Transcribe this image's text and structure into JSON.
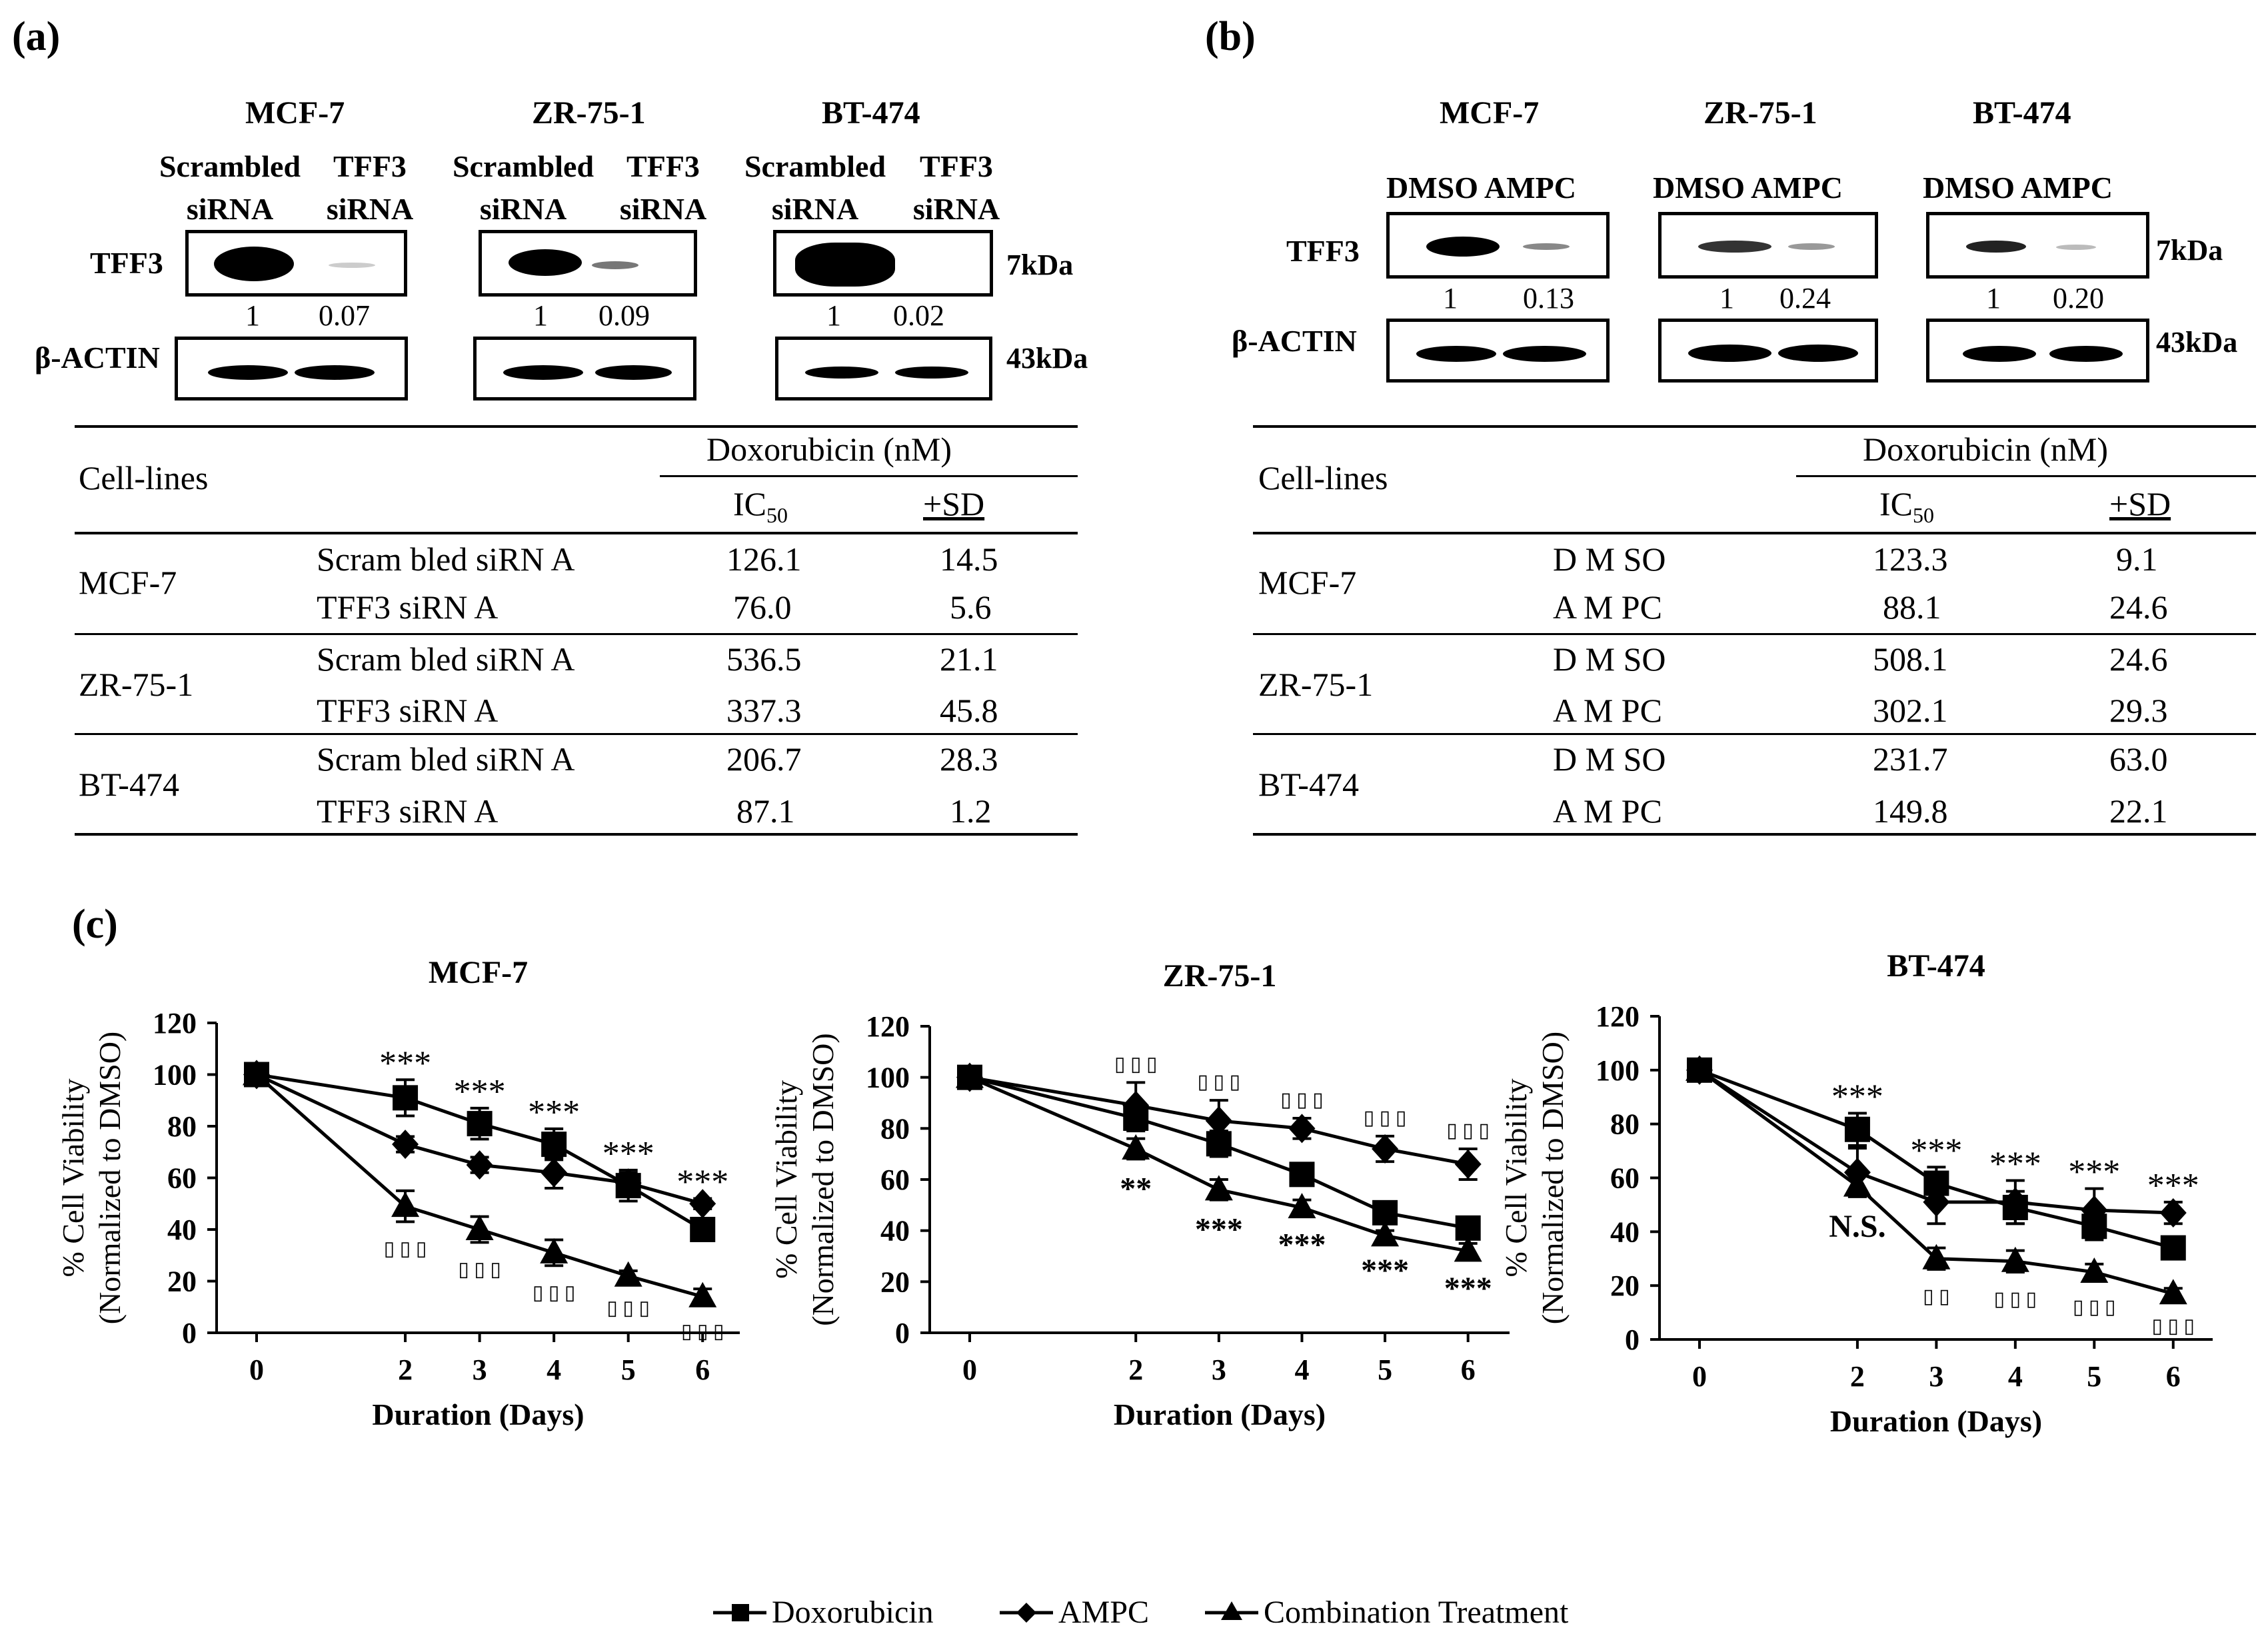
{
  "panel_a": {
    "label": "(a)",
    "cell_lines": [
      {
        "name": "MCF-7",
        "lane1": [
          "Scrambled",
          "siRNA"
        ],
        "lane2": [
          "TFF3",
          "siRNA"
        ],
        "quant": [
          "1",
          "0.07"
        ]
      },
      {
        "name": "ZR-75-1",
        "lane1": [
          "Scrambled",
          "siRNA"
        ],
        "lane2": [
          "TFF3",
          "siRNA"
        ],
        "quant": [
          "1",
          "0.09"
        ]
      },
      {
        "name": "BT-474",
        "lane1": [
          "Scrambled",
          "siRNA"
        ],
        "lane2": [
          "TFF3",
          "siRNA"
        ],
        "quant": [
          "1",
          "0.02"
        ]
      }
    ],
    "blot_labels": {
      "tff3": "TFF3",
      "actin": "β-ACTIN",
      "kda_tff3": "7kDa",
      "kda_actin": "43kDa"
    },
    "table": {
      "col_title": "Cell-lines",
      "group_header": "Doxorubicin (nM)",
      "ic": "IC",
      "ic_sub": "50",
      "sd": "+SD",
      "rows": [
        {
          "line": "MCF-7",
          "items": [
            {
              "cond": "Scram bled siRN A",
              "ic50": "126.1",
              "sd": "14.5"
            },
            {
              "cond": "TFF3 siRN A",
              "ic50": "76.0",
              "sd": "5.6"
            }
          ]
        },
        {
          "line": "ZR-75-1",
          "items": [
            {
              "cond": "Scram bled siRN A",
              "ic50": "536.5",
              "sd": "21.1"
            },
            {
              "cond": "TFF3 siRN A",
              "ic50": "337.3",
              "sd": "45.8"
            }
          ]
        },
        {
          "line": "BT-474",
          "items": [
            {
              "cond": "Scram bled siRN A",
              "ic50": "206.7",
              "sd": "28.3"
            },
            {
              "cond": "TFF3 siRN A",
              "ic50": "87.1",
              "sd": "1.2"
            }
          ]
        }
      ]
    }
  },
  "panel_b": {
    "label": "(b)",
    "cell_lines": [
      {
        "name": "MCF-7",
        "lanes": "DMSO AMPC",
        "quant": [
          "1",
          "0.13"
        ]
      },
      {
        "name": "ZR-75-1",
        "lanes": "DMSO AMPC",
        "quant": [
          "1",
          "0.24"
        ]
      },
      {
        "name": "BT-474",
        "lanes": "DMSO AMPC",
        "quant": [
          "1",
          "0.20"
        ]
      }
    ],
    "blot_labels": {
      "tff3": "TFF3",
      "actin": "β-ACTIN",
      "kda_tff3": "7kDa",
      "kda_actin": "43kDa"
    },
    "table": {
      "col_title": "Cell-lines",
      "group_header": "Doxorubicin (nM)",
      "ic": "IC",
      "ic_sub": "50",
      "sd": "+SD",
      "rows": [
        {
          "line": "MCF-7",
          "items": [
            {
              "cond": "D M SO",
              "ic50": "123.3",
              "sd": "9.1"
            },
            {
              "cond": "A M PC",
              "ic50": "88.1",
              "sd": "24.6"
            }
          ]
        },
        {
          "line": "ZR-75-1",
          "items": [
            {
              "cond": "D M SO",
              "ic50": "508.1",
              "sd": "24.6"
            },
            {
              "cond": "A M PC",
              "ic50": "302.1",
              "sd": "29.3"
            }
          ]
        },
        {
          "line": "BT-474",
          "items": [
            {
              "cond": "D M SO",
              "ic50": "231.7",
              "sd": "63.0"
            },
            {
              "cond": "A M PC",
              "ic50": "149.8",
              "sd": "22.1"
            }
          ]
        }
      ]
    }
  },
  "panel_c": {
    "label": "(c)",
    "legend": [
      "Doxorubicin",
      "AMPC",
      "Combination Treatment"
    ]
  },
  "chart_data": [
    {
      "type": "line",
      "title": "MCF-7",
      "xlabel": "Duration (Days)",
      "ylabel": [
        "% Cell Viability",
        "(Normalized to DMSO)"
      ],
      "x": [
        0,
        2,
        3,
        4,
        5,
        6
      ],
      "ylim": [
        0,
        120
      ],
      "yticks": [
        0,
        20,
        40,
        60,
        80,
        100,
        120
      ],
      "series": [
        {
          "name": "Doxorubicin",
          "marker": "square",
          "values": [
            100,
            91,
            81,
            73,
            57,
            40
          ],
          "err": [
            2,
            7,
            6,
            6,
            6,
            2
          ]
        },
        {
          "name": "AMPC",
          "marker": "diamond",
          "values": [
            100,
            73,
            65,
            62,
            58,
            50
          ],
          "err": [
            2,
            3,
            3,
            6,
            4,
            2
          ]
        },
        {
          "name": "Combination Treatment",
          "marker": "triangle",
          "values": [
            100,
            49,
            40,
            31,
            22,
            14
          ],
          "err": [
            2,
            6,
            5,
            5,
            2,
            3
          ]
        }
      ],
      "annotations_top": [
        "***",
        "***",
        "***",
        "***",
        "***"
      ],
      "annotations_bottom": [
        "▯ ▯ ▯",
        "▯ ▯ ▯",
        "▯ ▯ ▯",
        "▯ ▯ ▯",
        "▯ ▯ ▯"
      ]
    },
    {
      "type": "line",
      "title": "ZR-75-1",
      "xlabel": "Duration (Days)",
      "ylabel": [
        "% Cell Viability",
        "(Normalized to DMSO)"
      ],
      "x": [
        0,
        2,
        3,
        4,
        5,
        6
      ],
      "ylim": [
        0,
        120
      ],
      "yticks": [
        0,
        20,
        40,
        60,
        80,
        100,
        120
      ],
      "series": [
        {
          "name": "Doxorubicin",
          "marker": "square",
          "values": [
            100,
            84,
            74,
            62,
            47,
            41
          ],
          "err": [
            2,
            5,
            5,
            4,
            4,
            3
          ]
        },
        {
          "name": "AMPC",
          "marker": "diamond",
          "values": [
            100,
            89,
            83,
            80,
            72,
            66
          ],
          "err": [
            2,
            9,
            8,
            4,
            5,
            6
          ]
        },
        {
          "name": "Combination Treatment",
          "marker": "triangle",
          "values": [
            100,
            72,
            56,
            49,
            38,
            32
          ],
          "err": [
            2,
            4,
            4,
            3,
            2,
            3
          ]
        }
      ],
      "annotations_top": [
        "▯ ▯ ▯",
        "▯ ▯ ▯",
        "▯ ▯ ▯",
        "▯ ▯ ▯",
        "▯ ▯ ▯"
      ],
      "annotations_bottom": [
        "**",
        "***",
        "***",
        "***",
        "***"
      ]
    },
    {
      "type": "line",
      "title": "BT-474",
      "xlabel": "Duration (Days)",
      "ylabel": [
        "% Cell  Viability",
        "(Normalized to DMSO)"
      ],
      "x": [
        0,
        2,
        3,
        4,
        5,
        6
      ],
      "ylim": [
        0,
        120
      ],
      "yticks": [
        0,
        20,
        40,
        60,
        80,
        100,
        120
      ],
      "series": [
        {
          "name": "Doxorubicin",
          "marker": "square",
          "values": [
            100,
            78,
            58,
            49,
            42,
            34
          ],
          "err": [
            2,
            6,
            6,
            6,
            5,
            3
          ]
        },
        {
          "name": "AMPC",
          "marker": "diamond",
          "values": [
            100,
            62,
            51,
            51,
            48,
            47
          ],
          "err": [
            2,
            9,
            8,
            8,
            8,
            4
          ]
        },
        {
          "name": "Combination Treatment",
          "marker": "triangle",
          "values": [
            100,
            57,
            30,
            29,
            25,
            17
          ],
          "err": [
            2,
            4,
            4,
            4,
            3,
            2
          ]
        }
      ],
      "annotations_top": [
        "***",
        "***",
        "***",
        "***",
        "***"
      ],
      "annotations_bottom": [
        "N.S.",
        "▯ ▯",
        "▯ ▯ ▯",
        "▯ ▯ ▯",
        "▯ ▯ ▯"
      ]
    }
  ]
}
